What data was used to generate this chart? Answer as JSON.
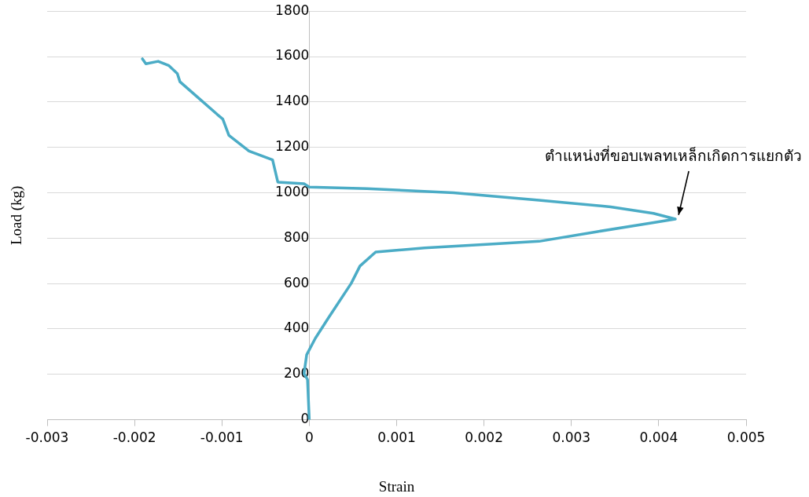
{
  "chart_data": {
    "type": "line",
    "xlabel": "Strain",
    "ylabel": "Load (kg)",
    "xlim": [
      -0.003,
      0.005
    ],
    "xticks": [
      -0.003,
      -0.002,
      -0.001,
      0,
      0.001,
      0.002,
      0.003,
      0.004,
      0.005
    ],
    "ylim": [
      0,
      1800
    ],
    "yticks": [
      0,
      200,
      400,
      600,
      800,
      1000,
      1200,
      1400,
      1600,
      1800
    ],
    "grid": "y",
    "legend": false,
    "marker": "none",
    "line_style": "solid",
    "series": [
      {
        "color": "#4bacc6",
        "x": [
          0,
          -2e-05,
          -6e-05,
          -3e-05,
          7e-05,
          0.00022,
          0.00048,
          0.00058,
          0.00076,
          0.00132,
          0.00214,
          0.00263,
          0.0033,
          0.0039,
          0.00419,
          0.00394,
          0.00345,
          0.00263,
          0.00165,
          0.00066,
          0,
          -6e-05,
          -0.00036,
          -0.00042,
          -0.00069,
          -0.00092,
          -0.00099,
          -0.00105,
          -0.00148,
          -0.00151,
          -0.00161,
          -0.00173,
          -0.00187,
          -0.00191
        ],
        "values": [
          0,
          177,
          203,
          286,
          359,
          449,
          601,
          677,
          739,
          757,
          775,
          786,
          829,
          866,
          884,
          909,
          938,
          967,
          1000,
          1018,
          1025,
          1040,
          1047,
          1145,
          1184,
          1253,
          1325,
          1344,
          1489,
          1525,
          1561,
          1579,
          1568,
          1590
        ]
      }
    ],
    "annotations": [
      {
        "text": "ตำแหน่งที่ขอบเพลทเหล็กเกิดการแยกตัว",
        "x": 0.0042,
        "y": 885
      }
    ]
  }
}
